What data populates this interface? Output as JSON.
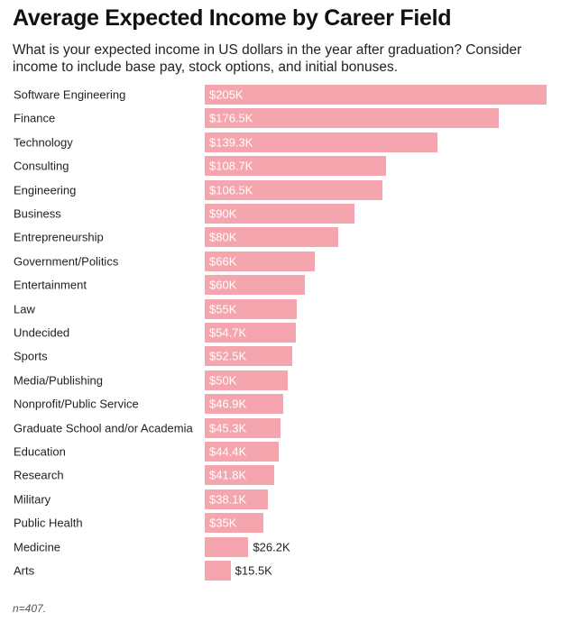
{
  "chart_data": {
    "type": "bar",
    "orientation": "horizontal",
    "title": "Average Expected Income by Career Field",
    "subtitle": "What is your expected income in US dollars in the year after graduation? Consider income to include base pay, stock options, and initial bonuses.",
    "categories": [
      "Software Engineering",
      "Finance",
      "Technology",
      "Consulting",
      "Engineering",
      "Business",
      "Entrepreneurship",
      "Government/Politics",
      "Entertainment",
      "Law",
      "Undecided",
      "Sports",
      "Media/Publishing",
      "Nonprofit/Public Service",
      "Graduate School and/or Academia",
      "Education",
      "Research",
      "Military",
      "Public Health",
      "Medicine",
      "Arts"
    ],
    "values": [
      205000,
      176500,
      139300,
      108700,
      106500,
      90000,
      80000,
      66000,
      60000,
      55000,
      54700,
      52500,
      50000,
      46900,
      45300,
      44400,
      41800,
      38100,
      35000,
      26200,
      15500
    ],
    "value_labels": [
      "$205K",
      "$176.5K",
      "$139.3K",
      "$108.7K",
      "$106.5K",
      "$90K",
      "$80K",
      "$66K",
      "$60K",
      "$55K",
      "$54.7K",
      "$52.5K",
      "$50K",
      "$46.9K",
      "$45.3K",
      "$44.4K",
      "$41.8K",
      "$38.1K",
      "$35K",
      "$26.2K",
      "$15.5K"
    ],
    "xlim": [
      0,
      205000
    ],
    "bar_color": "#f5a5ad",
    "note": "n=407."
  }
}
